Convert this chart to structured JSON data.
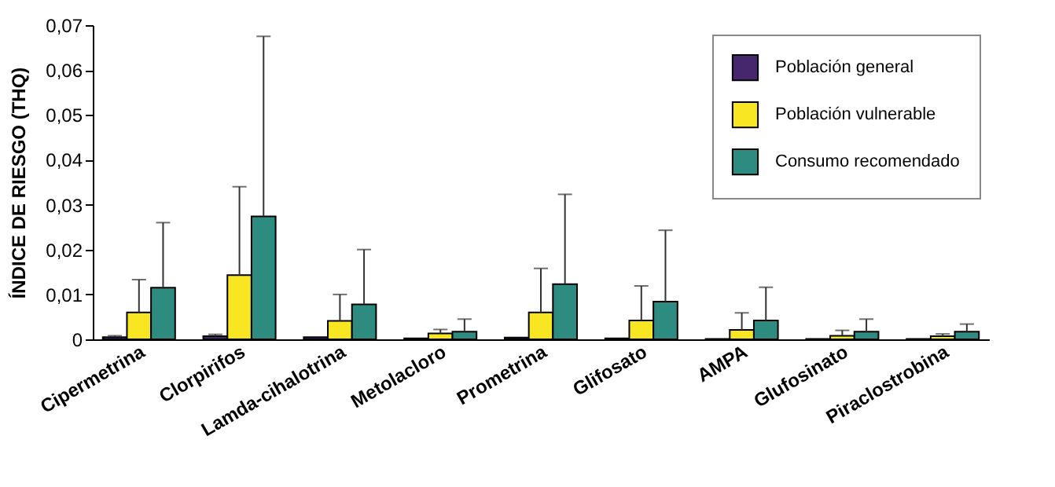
{
  "chart_data": {
    "type": "bar",
    "ylabel": "ÍNDICE DE RIESGO (THQ)",
    "categories": [
      "Cipermetrina",
      "Clorpirifos",
      "Lamda-cihalotrina",
      "Metolacloro",
      "Prometrina",
      "Glifosato",
      "AMPA",
      "Glufosinato",
      "Piraclostrobina"
    ],
    "series": [
      {
        "name": "Población general",
        "color": "#46276e",
        "values": [
          0.0005,
          0.0007,
          0.0005,
          0.0002,
          0.0004,
          0.0002,
          0.0001,
          0.0001,
          0.0001
        ],
        "errors": [
          [
            0.0005,
            0.0008
          ],
          [
            0.0007,
            0.0011
          ],
          null,
          null,
          null,
          null,
          null,
          null,
          null
        ]
      },
      {
        "name": "Población vulnerable",
        "color": "#f9e623",
        "values": [
          0.006,
          0.0143,
          0.0041,
          0.0013,
          0.006,
          0.0042,
          0.0021,
          0.0008,
          0.0007
        ],
        "errors": [
          [
            0.006,
            0.0133
          ],
          [
            0.0143,
            0.034
          ],
          [
            0.0041,
            0.01
          ],
          [
            0.0013,
            0.0022
          ],
          [
            0.006,
            0.0158
          ],
          [
            0.0042,
            0.0119
          ],
          [
            0.0021,
            0.0059
          ],
          [
            0.0008,
            0.002
          ],
          [
            0.0007,
            0.0012
          ]
        ]
      },
      {
        "name": "Consumo recomendado",
        "color": "#2e8b80",
        "values": [
          0.0115,
          0.0274,
          0.0078,
          0.0017,
          0.0123,
          0.0084,
          0.0042,
          0.0017,
          0.0017
        ],
        "errors": [
          [
            0.0115,
            0.026
          ],
          [
            0.0274,
            0.0675
          ],
          [
            0.0078,
            0.02
          ],
          [
            0.0017,
            0.0045
          ],
          [
            0.0123,
            0.0323
          ],
          [
            0.0084,
            0.0243
          ],
          [
            0.0042,
            0.0116
          ],
          [
            0.0017,
            0.0045
          ],
          [
            0.0017,
            0.0034
          ]
        ]
      }
    ],
    "ylim": [
      0,
      0.07
    ],
    "yticks": [
      0,
      {
        "value": 0.01,
        "label": "0,01"
      },
      {
        "value": 0.02,
        "label": "0,02"
      },
      {
        "value": 0.03,
        "label": "0,03"
      },
      {
        "value": 0.04,
        "label": "0,04"
      },
      {
        "value": 0.05,
        "label": "0,05"
      },
      {
        "value": 0.06,
        "label": "0,06"
      },
      {
        "value": 0.07,
        "label": "0,07"
      }
    ],
    "grid": false,
    "legend": "top right"
  }
}
